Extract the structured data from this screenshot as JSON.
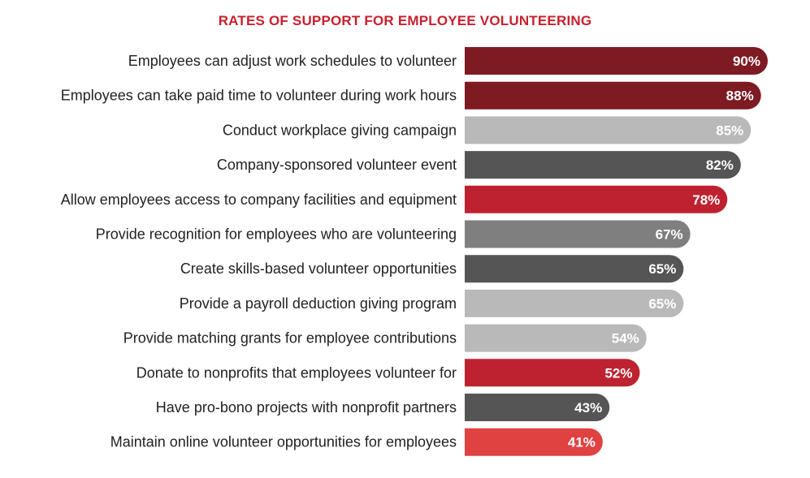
{
  "chart_data": {
    "type": "bar",
    "orientation": "horizontal",
    "title": "RATES OF SUPPORT FOR EMPLOYEE VOLUNTEERING",
    "categories": [
      "Employees can adjust work schedules to volunteer",
      "Employees can take paid time to volunteer during work hours",
      "Conduct workplace giving campaign",
      "Company-sponsored volunteer event",
      "Allow employees access to company facilities and equipment",
      "Provide recognition for employees who are volunteering",
      "Create skills-based volunteer opportunities",
      "Provide a payroll deduction giving program",
      "Provide matching grants for employee contributions",
      "Donate to nonprofits that employees volunteer for",
      "Have pro-bono projects with nonprofit partners",
      "Maintain online volunteer opportunities for employees"
    ],
    "values": [
      90,
      88,
      85,
      82,
      78,
      67,
      65,
      65,
      54,
      52,
      43,
      41
    ],
    "value_labels": [
      "90%",
      "88%",
      "85%",
      "82%",
      "78%",
      "67%",
      "65%",
      "65%",
      "54%",
      "52%",
      "43%",
      "41%"
    ],
    "colors": [
      "#7d1a22",
      "#7d1a22",
      "#b9b9b9",
      "#555555",
      "#be2231",
      "#7f7f7f",
      "#555555",
      "#b9b9b9",
      "#b9b9b9",
      "#be2231",
      "#555555",
      "#e04141"
    ],
    "xlim": [
      0,
      100
    ],
    "grid": false,
    "legend": "none"
  }
}
